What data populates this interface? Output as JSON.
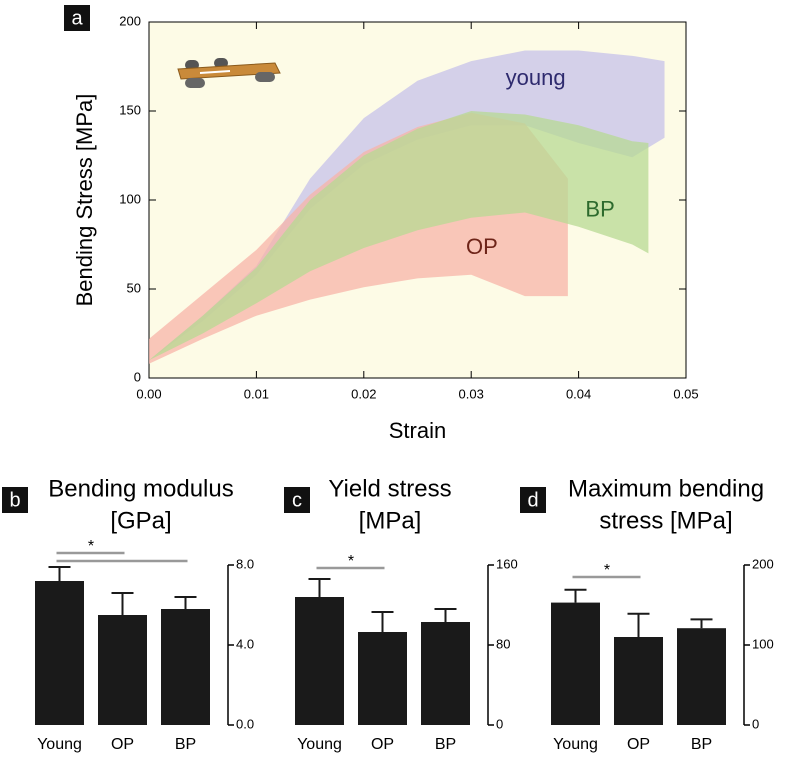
{
  "chart_data": [
    {
      "type": "band",
      "panel": "a",
      "x_label": "Strain",
      "y_label": "Bending Stress [MPa]",
      "xlim": [
        0,
        0.05
      ],
      "xticks": [
        {
          "value": 0,
          "label": "0.00"
        },
        0.01,
        0.02,
        0.03,
        0.04,
        0.05
      ],
      "ylim": [
        0,
        200
      ],
      "yticks": [
        0,
        50,
        100,
        150,
        200
      ],
      "series": [
        {
          "name": "young",
          "color": "#c6c1ea",
          "label_color": "#2e2a6e",
          "label_at": [
            0.036,
            168
          ],
          "x": [
            0,
            0.005,
            0.01,
            0.015,
            0.02,
            0.025,
            0.03,
            0.035,
            0.04,
            0.045,
            0.048
          ],
          "upper": [
            10,
            35,
            63,
            112,
            146,
            167,
            178,
            184,
            184,
            181,
            178
          ],
          "lower": [
            10,
            32,
            58,
            95,
            120,
            134,
            142,
            142,
            132,
            124,
            135
          ]
        },
        {
          "name": "OP",
          "color": "#f7b4a8",
          "label_color": "#6e2418",
          "label_at": [
            0.031,
            73
          ],
          "x": [
            0,
            0.005,
            0.01,
            0.015,
            0.02,
            0.025,
            0.03,
            0.035,
            0.039
          ],
          "upper": [
            22,
            47,
            72,
            103,
            127,
            141,
            149,
            143,
            112
          ],
          "lower": [
            8,
            22,
            35,
            44,
            51,
            56,
            58,
            46,
            46
          ]
        },
        {
          "name": "BP",
          "color": "#b7da93",
          "label_color": "#2d6a2d",
          "label_at": [
            0.042,
            94
          ],
          "x": [
            0,
            0.005,
            0.01,
            0.015,
            0.02,
            0.025,
            0.03,
            0.035,
            0.04,
            0.045,
            0.0465
          ],
          "upper": [
            10,
            35,
            62,
            100,
            125,
            140,
            150,
            148,
            142,
            133,
            132
          ],
          "lower": [
            10,
            25,
            42,
            60,
            73,
            83,
            90,
            93,
            85,
            75,
            70
          ]
        }
      ]
    },
    {
      "type": "bar",
      "panel": "b",
      "title": "Bending modulus",
      "subtitle": "[GPa]",
      "color": "#1a1a1a",
      "categories": [
        "Young",
        "OP",
        "BP"
      ],
      "values": [
        7.2,
        5.5,
        5.8
      ],
      "errors": [
        0.7,
        1.1,
        0.6
      ],
      "ylim": [
        0,
        8
      ],
      "yticks": [
        {
          "value": 0,
          "label": "0.0"
        },
        {
          "value": 4,
          "label": "4.0"
        },
        {
          "value": 8,
          "label": "8.0"
        }
      ],
      "annotations": [
        {
          "text": "*",
          "from": 0,
          "to": 1
        },
        {
          "from": 0,
          "to": 2
        }
      ]
    },
    {
      "type": "bar",
      "panel": "c",
      "title": "Yield stress",
      "subtitle": "[MPa]",
      "color": "#1a1a1a",
      "categories": [
        "Young",
        "OP",
        "BP"
      ],
      "values": [
        128,
        93,
        103
      ],
      "errors": [
        18,
        20,
        13
      ],
      "ylim": [
        0,
        160
      ],
      "yticks": [
        0,
        80,
        160
      ],
      "annotations": [
        {
          "text": "*",
          "from": 0,
          "to": 1
        }
      ]
    },
    {
      "type": "bar",
      "panel": "d",
      "title": "Maximum bending",
      "subtitle": "stress [MPa]",
      "color": "#1a1a1a",
      "categories": [
        "Young",
        "OP",
        "BP"
      ],
      "values": [
        153,
        110,
        121
      ],
      "errors": [
        16,
        29,
        11
      ],
      "ylim": [
        0,
        200
      ],
      "yticks": [
        0,
        100,
        200
      ],
      "annotations": [
        {
          "text": "*",
          "from": 0,
          "to": 1
        }
      ]
    }
  ]
}
